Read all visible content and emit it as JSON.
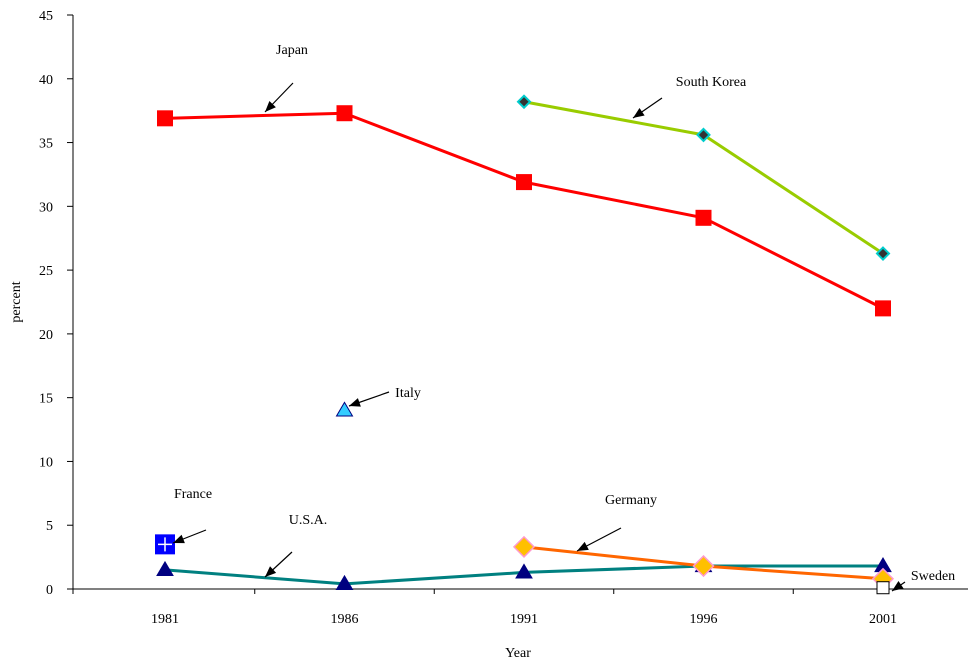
{
  "chart_data": {
    "type": "line",
    "title": "",
    "xlabel": "Year",
    "ylabel": "percent",
    "categories": [
      "1981",
      "1986",
      "1991",
      "1996",
      "2001"
    ],
    "ylim": [
      0,
      45
    ],
    "yticks": [
      0,
      5,
      10,
      15,
      20,
      25,
      30,
      35,
      40,
      45
    ],
    "grid": false,
    "legend": "none",
    "series": [
      {
        "name": "Japan",
        "color": "#ff0000",
        "line_color": "#ff0000",
        "marker": "square",
        "values": [
          36.9,
          37.3,
          31.9,
          29.1,
          22.0
        ]
      },
      {
        "name": "South Korea",
        "color": "#333333",
        "line_color": "#99cc00",
        "marker": "diamond",
        "values": [
          null,
          null,
          38.2,
          35.6,
          26.3
        ]
      },
      {
        "name": "Italy",
        "color": "#33ccff",
        "line_color": "none",
        "marker": "triangle",
        "values": [
          null,
          14.0,
          null,
          null,
          null
        ]
      },
      {
        "name": "France",
        "color": "#0000ff",
        "line_color": "none",
        "marker": "square-cross",
        "values": [
          3.5,
          null,
          null,
          null,
          null
        ]
      },
      {
        "name": "U.S.A.",
        "color": "#000080",
        "line_color": "#008080",
        "marker": "triangle",
        "values": [
          1.5,
          0.4,
          1.3,
          1.8,
          1.8
        ]
      },
      {
        "name": "Germany",
        "color": "#ffc000",
        "line_color": "#ff6600",
        "marker": "diamond",
        "values": [
          null,
          null,
          3.3,
          1.8,
          0.8
        ]
      },
      {
        "name": "Sweden",
        "color": "#ffffff",
        "line_color": "none",
        "marker": "square-hollow",
        "values": [
          null,
          null,
          null,
          null,
          0.1
        ]
      }
    ]
  }
}
